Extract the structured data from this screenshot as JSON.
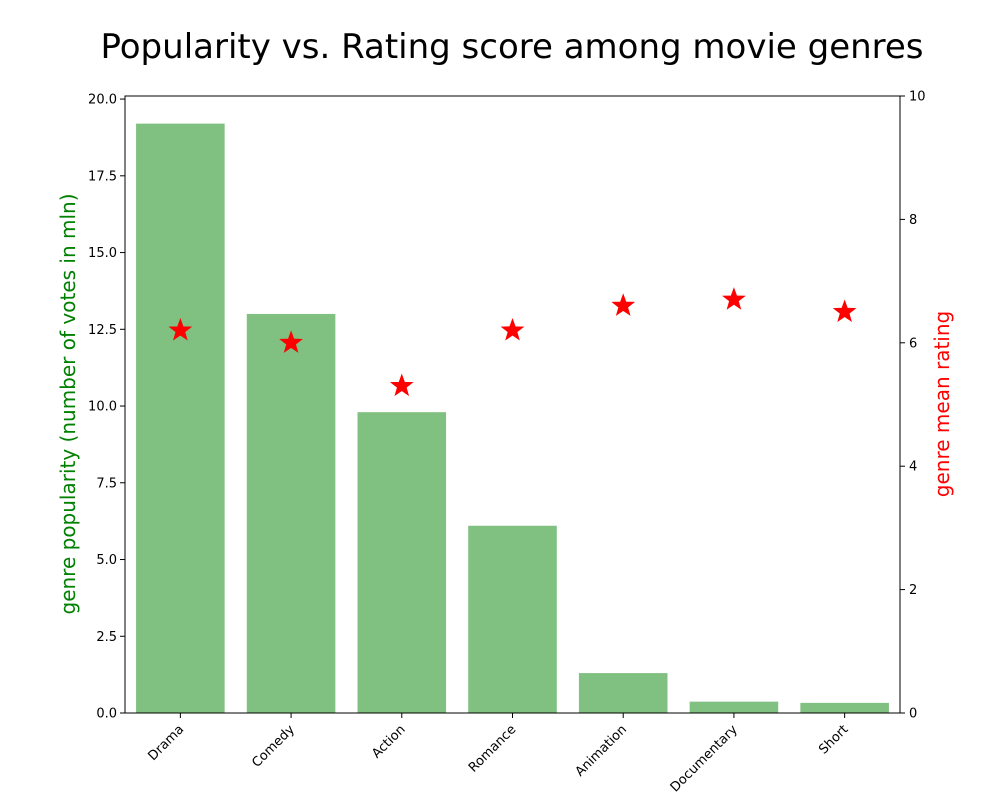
{
  "chart_data": {
    "type": "bar+scatter",
    "title": "Popularity vs. Rating score among movie genres",
    "categories": [
      "Drama",
      "Comedy",
      "Action",
      "Romance",
      "Animation",
      "Documentary",
      "Short"
    ],
    "series": [
      {
        "name": "genre popularity",
        "kind": "bar",
        "axis": "left",
        "color": "#80c080",
        "values": [
          19.2,
          13.0,
          9.8,
          6.1,
          1.3,
          0.37,
          0.33
        ]
      },
      {
        "name": "genre mean rating",
        "kind": "scatter",
        "marker": "star",
        "axis": "right",
        "color": "#ff0000",
        "values": [
          6.2,
          6.0,
          5.3,
          6.2,
          6.6,
          6.7,
          6.5
        ]
      }
    ],
    "ylabel": "genre popularity (number of votes in mln)",
    "ylabel_color": "#008000",
    "ylim": [
      0,
      20.1
    ],
    "yticks": [
      "0.0",
      "2.5",
      "5.0",
      "7.5",
      "10.0",
      "12.5",
      "15.0",
      "17.5",
      "20.0"
    ],
    "y2label": "genre mean rating",
    "y2label_color": "#ff0000",
    "y2lim": [
      0,
      10
    ],
    "y2ticks": [
      "0",
      "2",
      "4",
      "6",
      "8",
      "10"
    ],
    "grid": false
  }
}
